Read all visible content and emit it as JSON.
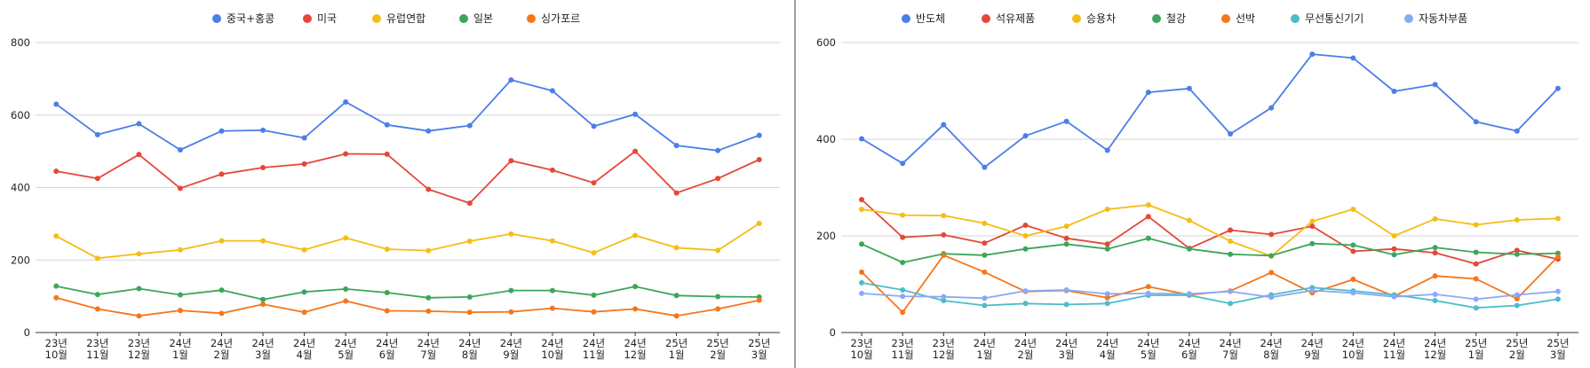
{
  "chart_data": [
    {
      "type": "line",
      "title": "",
      "xlabel": "",
      "ylabel": "",
      "ylim": [
        0,
        800
      ],
      "yticks": [
        "0",
        "200",
        "400",
        "600",
        "800"
      ],
      "grid": true,
      "legend_position": "top-center",
      "categories": [
        [
          "23년",
          "10월"
        ],
        [
          "23년",
          "11월"
        ],
        [
          "23년",
          "12월"
        ],
        [
          "24년",
          "1월"
        ],
        [
          "24년",
          "2월"
        ],
        [
          "24년",
          "3월"
        ],
        [
          "24년",
          "4월"
        ],
        [
          "24년",
          "5월"
        ],
        [
          "24년",
          "6월"
        ],
        [
          "24년",
          "7월"
        ],
        [
          "24년",
          "8월"
        ],
        [
          "24년",
          "9월"
        ],
        [
          "24년",
          "10월"
        ],
        [
          "24년",
          "11월"
        ],
        [
          "24년",
          "12월"
        ],
        [
          "25년",
          "1월"
        ],
        [
          "25년",
          "2월"
        ],
        [
          "25년",
          "3월"
        ]
      ],
      "series": [
        {
          "name": "중국+홍콩",
          "color": "#4a7ee8",
          "values": [
            630,
            546,
            576,
            504,
            556,
            558,
            537,
            636,
            573,
            556,
            571,
            697,
            667,
            569,
            602,
            516,
            502,
            544
          ]
        },
        {
          "name": "미국",
          "color": "#e4473a",
          "values": [
            445,
            425,
            491,
            398,
            437,
            455,
            465,
            493,
            492,
            395,
            357,
            474,
            448,
            413,
            500,
            385,
            425,
            477
          ]
        },
        {
          "name": "유럽연합",
          "color": "#f5bd16",
          "values": [
            266,
            205,
            217,
            228,
            253,
            253,
            228,
            261,
            230,
            226,
            252,
            272,
            253,
            220,
            268,
            234,
            227,
            301
          ]
        },
        {
          "name": "일본",
          "color": "#3ca65a",
          "values": [
            128,
            105,
            121,
            104,
            117,
            91,
            112,
            120,
            110,
            96,
            98,
            116,
            116,
            103,
            127,
            102,
            99,
            98
          ]
        },
        {
          "name": "싱가포르",
          "color": "#f4761c",
          "values": [
            96,
            65,
            46,
            61,
            53,
            78,
            56,
            87,
            60,
            59,
            56,
            57,
            67,
            57,
            65,
            46,
            65,
            89
          ]
        }
      ]
    },
    {
      "type": "line",
      "title": "",
      "xlabel": "",
      "ylabel": "",
      "ylim": [
        0,
        600
      ],
      "yticks": [
        "0",
        "200",
        "400",
        "600"
      ],
      "grid": true,
      "legend_position": "top-center",
      "categories": [
        [
          "23년",
          "10월"
        ],
        [
          "23년",
          "11월"
        ],
        [
          "23년",
          "12월"
        ],
        [
          "24년",
          "1월"
        ],
        [
          "24년",
          "2월"
        ],
        [
          "24년",
          "3월"
        ],
        [
          "24년",
          "4월"
        ],
        [
          "24년",
          "5월"
        ],
        [
          "24년",
          "6월"
        ],
        [
          "24년",
          "7월"
        ],
        [
          "24년",
          "8월"
        ],
        [
          "24년",
          "9월"
        ],
        [
          "24년",
          "10월"
        ],
        [
          "24년",
          "11월"
        ],
        [
          "24년",
          "12월"
        ],
        [
          "25년",
          "1월"
        ],
        [
          "25년",
          "2월"
        ],
        [
          "25년",
          "3월"
        ]
      ],
      "series": [
        {
          "name": "반도체",
          "color": "#4a7ee8",
          "values": [
            401,
            350,
            430,
            342,
            407,
            437,
            377,
            497,
            505,
            411,
            465,
            576,
            568,
            499,
            513,
            436,
            417,
            505
          ]
        },
        {
          "name": "석유제품",
          "color": "#e4473a",
          "values": [
            275,
            197,
            202,
            185,
            222,
            195,
            183,
            240,
            174,
            212,
            203,
            220,
            168,
            173,
            165,
            142,
            170,
            152
          ]
        },
        {
          "name": "승용차",
          "color": "#f5bd16",
          "values": [
            255,
            243,
            242,
            226,
            200,
            220,
            255,
            264,
            232,
            189,
            158,
            230,
            255,
            200,
            235,
            223,
            233,
            236
          ]
        },
        {
          "name": "철강",
          "color": "#3ca65a",
          "values": [
            183,
            145,
            163,
            160,
            173,
            183,
            173,
            195,
            173,
            162,
            159,
            184,
            181,
            161,
            176,
            166,
            162,
            164
          ]
        },
        {
          "name": "선박",
          "color": "#f4761c",
          "values": [
            125,
            42,
            160,
            125,
            85,
            87,
            72,
            95,
            78,
            86,
            124,
            82,
            110,
            75,
            117,
            111,
            70,
            157
          ]
        },
        {
          "name": "무선통신기기",
          "color": "#4bbdc8",
          "values": [
            103,
            88,
            66,
            56,
            60,
            58,
            60,
            77,
            77,
            60,
            78,
            93,
            86,
            78,
            66,
            51,
            56,
            69
          ]
        },
        {
          "name": "자동차부품",
          "color": "#8aa9f5",
          "values": [
            81,
            75,
            74,
            71,
            86,
            88,
            80,
            81,
            80,
            85,
            73,
            87,
            82,
            74,
            79,
            69,
            78,
            85
          ]
        }
      ]
    }
  ]
}
